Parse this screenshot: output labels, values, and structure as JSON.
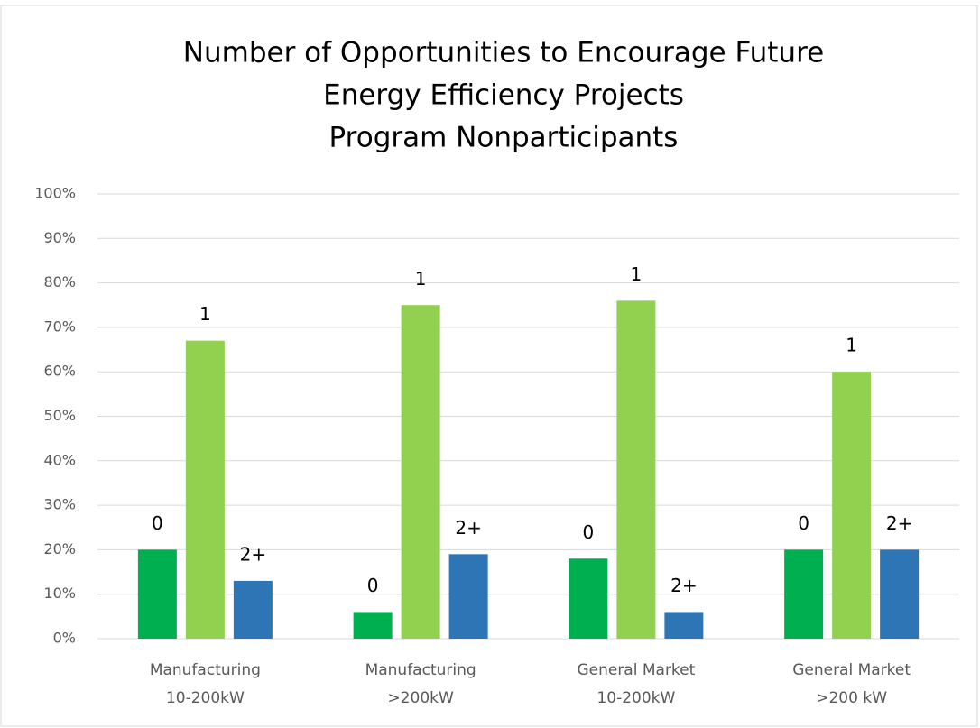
{
  "chart_data": {
    "type": "bar",
    "title": [
      "Number of Opportunities to Encourage Future",
      "Energy Efficiency Projects",
      "Program Nonparticipants"
    ],
    "categories": [
      [
        "Manufacturing",
        "10-200kW"
      ],
      [
        "Manufacturing",
        ">200kW"
      ],
      [
        "General Market",
        "10-200kW"
      ],
      [
        "General Market",
        ">200 kW"
      ]
    ],
    "series": [
      {
        "name": "0",
        "color": "#00b050",
        "values": [
          20,
          6,
          18,
          20
        ]
      },
      {
        "name": "1",
        "color": "#92d050",
        "values": [
          67,
          75,
          76,
          60
        ]
      },
      {
        "name": "2+",
        "color": "#2e75b6",
        "values": [
          13,
          19,
          6,
          20
        ]
      }
    ],
    "ylim": [
      0,
      100
    ],
    "yticks": [
      {
        "value": 0,
        "label": "0%"
      },
      {
        "value": 10,
        "label": "10%"
      },
      {
        "value": 20,
        "label": "20%"
      },
      {
        "value": 30,
        "label": "30%"
      },
      {
        "value": 40,
        "label": "40%"
      },
      {
        "value": 50,
        "label": "50%"
      },
      {
        "value": 60,
        "label": "60%"
      },
      {
        "value": 70,
        "label": "70%"
      },
      {
        "value": 80,
        "label": "80%"
      },
      {
        "value": 90,
        "label": "90%"
      },
      {
        "value": 100,
        "label": "100%"
      }
    ],
    "grid": true
  }
}
